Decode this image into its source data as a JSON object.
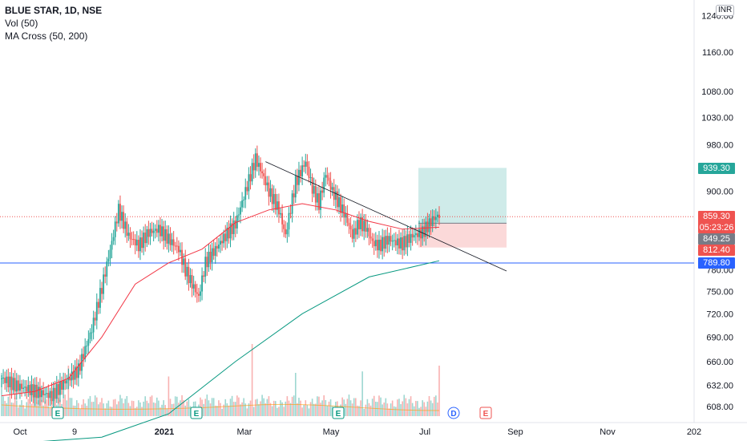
{
  "legend": {
    "symbol": "BLUE STAR, 1D, NSE",
    "volume": "Vol (50)",
    "ma_cross": "MA Cross (50, 200)"
  },
  "currency_badge": "INR",
  "price_tags": {
    "target": "939.30",
    "last": "859.30",
    "countdown": "05:23:26",
    "entry": "849.25",
    "stop": "812.40",
    "horizontal_line": "789.80"
  },
  "colors": {
    "up": "#26a69a",
    "down": "#ef5350",
    "ma_fast": "#f23645",
    "ma_slow": "#089981",
    "last_line": "#ef5350",
    "hline": "#2962ff",
    "target_zone": "#26a69a",
    "stop_zone": "#ef5350"
  },
  "chart_data": {
    "type": "candlestick",
    "y_axis": {
      "scale": "log",
      "ticks": [
        "1240.00",
        "1160.00",
        "1080.00",
        "1030.00",
        "980.00",
        "900.00",
        "780.00",
        "750.00",
        "720.00",
        "690.00",
        "660.00",
        "632.00",
        "608.00"
      ]
    },
    "x_axis": {
      "ticks": [
        "Oct",
        "9",
        "2021",
        "Mar",
        "May",
        "Jul",
        "Sep",
        "Nov",
        "202"
      ]
    },
    "event_markers": [
      "E",
      "E",
      "E",
      "D",
      "E"
    ],
    "price_path_daily_close": [
      [
        0,
        640
      ],
      [
        8,
        632
      ],
      [
        15,
        628
      ],
      [
        22,
        624
      ],
      [
        30,
        620
      ],
      [
        38,
        636
      ],
      [
        46,
        650
      ],
      [
        54,
        700
      ],
      [
        60,
        755
      ],
      [
        66,
        820
      ],
      [
        70,
        870
      ],
      [
        76,
        830
      ],
      [
        82,
        815
      ],
      [
        88,
        835
      ],
      [
        94,
        840
      ],
      [
        100,
        825
      ],
      [
        106,
        810
      ],
      [
        110,
        780
      ],
      [
        114,
        760
      ],
      [
        118,
        742
      ],
      [
        122,
        790
      ],
      [
        128,
        810
      ],
      [
        134,
        830
      ],
      [
        140,
        848
      ],
      [
        146,
        900
      ],
      [
        152,
        955
      ],
      [
        156,
        930
      ],
      [
        160,
        900
      ],
      [
        166,
        870
      ],
      [
        170,
        830
      ],
      [
        176,
        915
      ],
      [
        182,
        950
      ],
      [
        186,
        905
      ],
      [
        190,
        880
      ],
      [
        194,
        930
      ],
      [
        198,
        900
      ],
      [
        202,
        880
      ],
      [
        206,
        860
      ],
      [
        210,
        830
      ],
      [
        214,
        850
      ],
      [
        218,
        843
      ],
      [
        222,
        820
      ],
      [
        226,
        815
      ],
      [
        232,
        825
      ],
      [
        236,
        820
      ],
      [
        240,
        818
      ],
      [
        246,
        830
      ],
      [
        252,
        835
      ],
      [
        258,
        855
      ],
      [
        262,
        862
      ]
    ],
    "ma_fast_path": [
      [
        0,
        620
      ],
      [
        20,
        625
      ],
      [
        40,
        640
      ],
      [
        60,
        690
      ],
      [
        80,
        760
      ],
      [
        100,
        790
      ],
      [
        120,
        810
      ],
      [
        140,
        850
      ],
      [
        160,
        870
      ],
      [
        180,
        880
      ],
      [
        200,
        870
      ],
      [
        220,
        852
      ],
      [
        240,
        840
      ],
      [
        262,
        843
      ]
    ],
    "ma_slow_path": [
      [
        20,
        570
      ],
      [
        60,
        575
      ],
      [
        100,
        600
      ],
      [
        140,
        660
      ],
      [
        180,
        720
      ],
      [
        220,
        770
      ],
      [
        262,
        793
      ]
    ],
    "trendline": {
      "from": [
        158,
        950
      ],
      "to": [
        316,
        780
      ]
    },
    "position_tool": {
      "target": 939.3,
      "entry": 849.25,
      "stop": 812.4
    },
    "volume_spikes": [
      [
        0,
        60
      ],
      [
        40,
        70
      ],
      [
        100,
        55
      ],
      [
        150,
        100
      ],
      [
        176,
        60
      ],
      [
        216,
        62
      ],
      [
        262,
        70
      ]
    ]
  }
}
